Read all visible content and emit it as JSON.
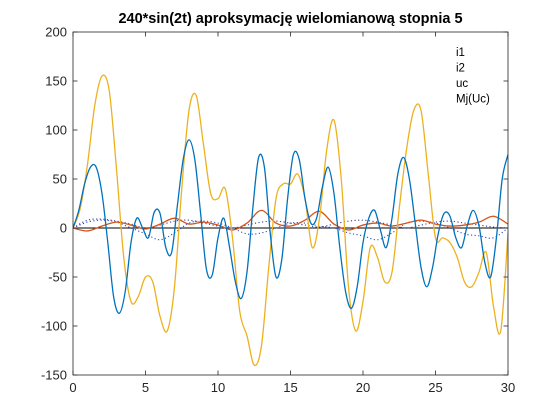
{
  "figure": {
    "title": "240*sin(2t) aproksymację wielomianową stopnia 5"
  },
  "chart_data": {
    "type": "line",
    "title": "240*sin(2t) aproksymację wielomianową stopnia 5",
    "xlabel": "",
    "ylabel": "",
    "xlim": [
      0,
      30
    ],
    "ylim": [
      -150,
      200
    ],
    "xticks": [
      0,
      5,
      10,
      15,
      20,
      25,
      30
    ],
    "yticks": [
      -150,
      -100,
      -50,
      0,
      50,
      100,
      150,
      200
    ],
    "grid": false,
    "legend_location": "top-right",
    "series": [
      {
        "name": "i1",
        "color": "#0072BD",
        "style": "solid",
        "x": [
          0,
          0.4,
          0.8,
          1.2,
          1.6,
          2.0,
          2.4,
          2.8,
          3.2,
          3.6,
          4.0,
          4.4,
          4.8,
          5.2,
          5.6,
          6.0,
          6.4,
          6.8,
          7.2,
          7.6,
          8.0,
          8.4,
          8.8,
          9.2,
          9.6,
          10.0,
          10.4,
          10.8,
          11.2,
          11.6,
          12.0,
          12.4,
          12.8,
          13.2,
          13.6,
          14.0,
          14.4,
          14.8,
          15.2,
          15.6,
          16.0,
          16.4,
          16.8,
          17.2,
          17.6,
          18.0,
          18.4,
          18.8,
          19.2,
          19.6,
          20.0,
          20.4,
          20.8,
          21.2,
          21.6,
          22.0,
          22.4,
          22.8,
          23.2,
          23.6,
          24.0,
          24.4,
          24.8,
          25.2,
          25.6,
          26.0,
          26.4,
          26.8,
          27.2,
          27.6,
          28.0,
          28.4,
          28.8,
          29.2,
          29.6,
          30.0
        ],
        "y": [
          0,
          18,
          45,
          62,
          62,
          35,
          -15,
          -70,
          -87,
          -65,
          -15,
          10,
          0,
          -10,
          16,
          15,
          -20,
          -25,
          23,
          70,
          90,
          70,
          15,
          -42,
          -48,
          -10,
          10,
          -20,
          -55,
          -72,
          -45,
          20,
          72,
          62,
          -5,
          -50,
          -32,
          30,
          75,
          70,
          30,
          5,
          10,
          42,
          62,
          35,
          -20,
          -65,
          -82,
          -60,
          -15,
          10,
          18,
          -2,
          -20,
          10,
          55,
          72,
          50,
          5,
          -40,
          -60,
          -40,
          -5,
          15,
          12,
          -10,
          -20,
          3,
          18,
          2,
          -35,
          -50,
          -10,
          50,
          75
        ]
      },
      {
        "name": "i2",
        "color": "#D95319",
        "style": "solid",
        "x": [
          0,
          1,
          2,
          3,
          4,
          5,
          6,
          7,
          8,
          9,
          10,
          11,
          12,
          13,
          14,
          15,
          16,
          17,
          18,
          19,
          20,
          21,
          22,
          23,
          24,
          25,
          26,
          27,
          28,
          29,
          30
        ],
        "y": [
          0,
          -3,
          2,
          6,
          3,
          -1,
          4,
          10,
          4,
          6,
          3,
          -2,
          5,
          18,
          5,
          2,
          8,
          17,
          4,
          -2,
          3,
          5,
          2,
          5,
          8,
          4,
          2,
          3,
          6,
          12,
          4
        ]
      },
      {
        "name": "uc",
        "color": "#EDB120",
        "style": "solid",
        "x": [
          0,
          0.5,
          1.0,
          1.5,
          2.0,
          2.5,
          3.0,
          3.5,
          4.0,
          4.5,
          5.0,
          5.5,
          6.0,
          6.5,
          7.0,
          7.5,
          8.0,
          8.5,
          9.0,
          9.5,
          10.0,
          10.5,
          11.0,
          11.5,
          12.0,
          12.5,
          13.0,
          13.5,
          14.0,
          14.5,
          15.0,
          15.5,
          16.0,
          16.5,
          17.0,
          17.5,
          18.0,
          18.5,
          19.0,
          19.5,
          20.0,
          20.5,
          21.0,
          21.5,
          22.0,
          22.5,
          23.0,
          23.5,
          24.0,
          24.5,
          25.0,
          25.5,
          26.0,
          26.5,
          27.0,
          27.5,
          28.0,
          28.5,
          29.0,
          29.5,
          30.0
        ],
        "y": [
          0,
          20,
          65,
          125,
          155,
          140,
          60,
          -30,
          -75,
          -70,
          -50,
          -55,
          -90,
          -105,
          -60,
          40,
          120,
          135,
          85,
          35,
          30,
          40,
          -10,
          -85,
          -110,
          -140,
          -120,
          -40,
          30,
          45,
          45,
          55,
          30,
          -20,
          10,
          80,
          110,
          50,
          -60,
          -105,
          -75,
          -20,
          -30,
          -55,
          -45,
          20,
          80,
          120,
          120,
          55,
          -10,
          -10,
          -15,
          -30,
          -55,
          -60,
          -45,
          -25,
          -80,
          -105,
          -5
        ]
      },
      {
        "name": "Mj(Uc)",
        "color": "#2f4fbf",
        "style": "dotted",
        "x": [
          0,
          1,
          2,
          3,
          4,
          5,
          6,
          7,
          8,
          9,
          10,
          11,
          12,
          13,
          14,
          15,
          16,
          17,
          18,
          19,
          20,
          21,
          22,
          23,
          24,
          25,
          26,
          27,
          28,
          29,
          30
        ],
        "y": [
          0,
          6,
          8,
          6,
          0,
          -6,
          -12,
          -5,
          5,
          7,
          5,
          0,
          -6,
          -5,
          0,
          5,
          5,
          2,
          0,
          -5,
          -8,
          -12,
          -5,
          5,
          7,
          5,
          0,
          -6,
          -8,
          -10,
          0
        ]
      },
      {
        "name": "",
        "color": "#3f3f8f",
        "style": "dotted",
        "x": [
          0,
          1,
          2,
          3,
          4,
          5,
          6,
          7,
          8,
          9,
          10,
          11,
          12,
          13,
          14,
          15,
          16,
          17,
          18,
          19,
          20,
          21,
          22,
          23,
          24,
          25,
          26,
          27,
          28,
          29,
          30
        ],
        "y": [
          0,
          8,
          9,
          7,
          4,
          0,
          3,
          7,
          8,
          5,
          2,
          0,
          3,
          6,
          7,
          5,
          3,
          1,
          4,
          7,
          8,
          6,
          3,
          0,
          3,
          6,
          7,
          5,
          3,
          1,
          0
        ]
      }
    ]
  }
}
